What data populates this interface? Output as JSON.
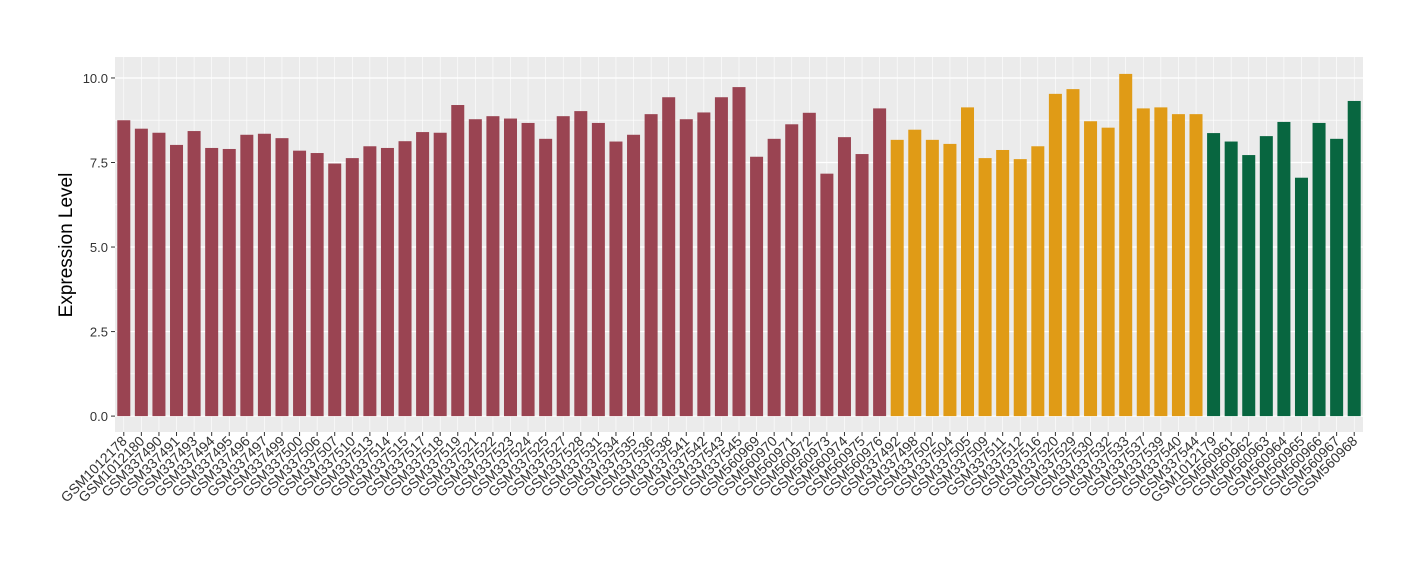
{
  "chart_data": {
    "type": "bar",
    "y_label": "Expression Level",
    "categories": [
      "GSM1012178",
      "GSM1012180",
      "GSM337490",
      "GSM337491",
      "GSM337493",
      "GSM337494",
      "GSM337495",
      "GSM337496",
      "GSM337497",
      "GSM337499",
      "GSM337500",
      "GSM337506",
      "GSM337507",
      "GSM337510",
      "GSM337513",
      "GSM337514",
      "GSM337515",
      "GSM337517",
      "GSM337518",
      "GSM337519",
      "GSM337521",
      "GSM337522",
      "GSM337523",
      "GSM337524",
      "GSM337525",
      "GSM337527",
      "GSM337528",
      "GSM337531",
      "GSM337534",
      "GSM337535",
      "GSM337536",
      "GSM337538",
      "GSM337541",
      "GSM337542",
      "GSM337543",
      "GSM337545",
      "GSM560969",
      "GSM560970",
      "GSM560971",
      "GSM560972",
      "GSM560973",
      "GSM560974",
      "GSM560975",
      "GSM560976",
      "GSM337492",
      "GSM337498",
      "GSM337502",
      "GSM337504",
      "GSM337505",
      "GSM337509",
      "GSM337511",
      "GSM337512",
      "GSM337516",
      "GSM337520",
      "GSM337529",
      "GSM337530",
      "GSM337532",
      "GSM337533",
      "GSM337537",
      "GSM337539",
      "GSM337540",
      "GSM337544",
      "GSM1012179",
      "GSM560961",
      "GSM560962",
      "GSM560963",
      "GSM560964",
      "GSM560965",
      "GSM560966",
      "GSM560967",
      "GSM560968"
    ],
    "values": [
      8.75,
      8.5,
      8.38,
      8.02,
      8.43,
      7.93,
      7.9,
      8.32,
      8.35,
      8.22,
      7.85,
      7.78,
      7.47,
      7.63,
      7.98,
      7.93,
      8.13,
      8.4,
      8.38,
      9.2,
      8.78,
      8.87,
      8.8,
      8.67,
      8.2,
      8.87,
      9.02,
      8.67,
      8.12,
      8.32,
      8.93,
      9.43,
      8.78,
      8.98,
      9.43,
      9.73,
      7.67,
      8.2,
      8.63,
      8.97,
      7.17,
      8.25,
      7.75,
      9.1,
      8.17,
      8.47,
      8.17,
      8.05,
      9.13,
      7.63,
      7.87,
      7.6,
      7.98,
      9.53,
      9.67,
      8.72,
      8.53,
      10.12,
      9.1,
      9.13,
      8.93,
      8.93,
      8.37,
      8.12,
      7.72,
      8.28,
      8.7,
      7.05,
      8.67,
      8.2,
      9.32
    ],
    "colors": [
      "#9a4452",
      "#9a4452",
      "#9a4452",
      "#9a4452",
      "#9a4452",
      "#9a4452",
      "#9a4452",
      "#9a4452",
      "#9a4452",
      "#9a4452",
      "#9a4452",
      "#9a4452",
      "#9a4452",
      "#9a4452",
      "#9a4452",
      "#9a4452",
      "#9a4452",
      "#9a4452",
      "#9a4452",
      "#9a4452",
      "#9a4452",
      "#9a4452",
      "#9a4452",
      "#9a4452",
      "#9a4452",
      "#9a4452",
      "#9a4452",
      "#9a4452",
      "#9a4452",
      "#9a4452",
      "#9a4452",
      "#9a4452",
      "#9a4452",
      "#9a4452",
      "#9a4452",
      "#9a4452",
      "#9a4452",
      "#9a4452",
      "#9a4452",
      "#9a4452",
      "#9a4452",
      "#9a4452",
      "#9a4452",
      "#9a4452",
      "#e09b16",
      "#e09b16",
      "#e09b16",
      "#e09b16",
      "#e09b16",
      "#e09b16",
      "#e09b16",
      "#e09b16",
      "#e09b16",
      "#e09b16",
      "#e09b16",
      "#e09b16",
      "#e09b16",
      "#e09b16",
      "#e09b16",
      "#e09b16",
      "#e09b16",
      "#e09b16",
      "#086640",
      "#086640",
      "#086640",
      "#086640",
      "#086640",
      "#086640",
      "#086640",
      "#086640",
      "#086640"
    ],
    "ylim": [
      -0.47,
      10.62
    ],
    "yticks": [
      {
        "value": 0,
        "label": "0.0"
      },
      {
        "value": 2.5,
        "label": "2.5"
      },
      {
        "value": 5,
        "label": "5.0"
      },
      {
        "value": 7.5,
        "label": "7.5"
      },
      {
        "value": 10,
        "label": "10.0"
      }
    ],
    "grid": true
  }
}
